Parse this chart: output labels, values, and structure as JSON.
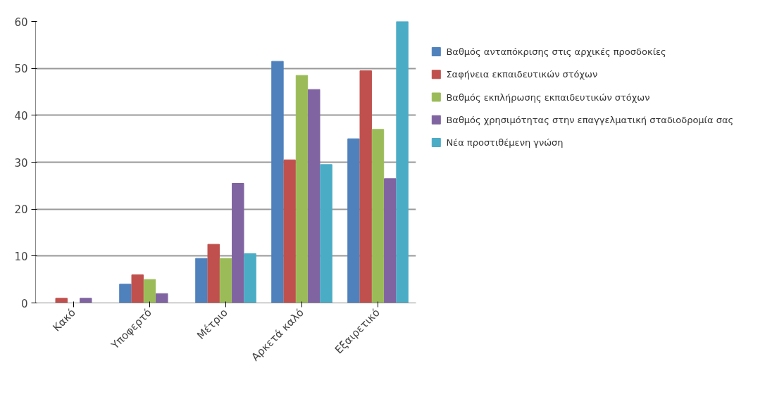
{
  "chart_data": {
    "type": "bar",
    "categories": [
      "Κακό",
      "Υποφερτό",
      "Μέτριο",
      "Αρκετά καλό",
      "Εξαιρετικό"
    ],
    "series": [
      {
        "name": "Βαθμός ανταπόκρισης στις αρχικές προσδοκίες",
        "color": "#4f81bd",
        "values": [
          0,
          4,
          9.5,
          51.5,
          35
        ]
      },
      {
        "name": "Σαφήνεια εκπαιδευτικών στόχων",
        "color": "#c0504d",
        "values": [
          1,
          6,
          12.5,
          30.5,
          49.5
        ]
      },
      {
        "name": "Βαθμός εκπλήρωσης εκπαιδευτικών στόχων",
        "color": "#9bbb59",
        "values": [
          0,
          5,
          9.5,
          48.5,
          37
        ]
      },
      {
        "name": "Βαθμός χρησιμότητας στην επαγγελματική σταδιοδρομία σας",
        "color": "#8064a2",
        "values": [
          1,
          2,
          25.5,
          45.5,
          26.5
        ]
      },
      {
        "name": "Νέα προστιθέμενη γνώση",
        "color": "#4bacc6",
        "values": [
          0,
          0,
          10.5,
          29.5,
          60
        ]
      }
    ],
    "ylim": [
      0,
      60
    ],
    "yticks": [
      0,
      10,
      20,
      30,
      40,
      50,
      60
    ],
    "grid": "y",
    "legend": "right"
  }
}
